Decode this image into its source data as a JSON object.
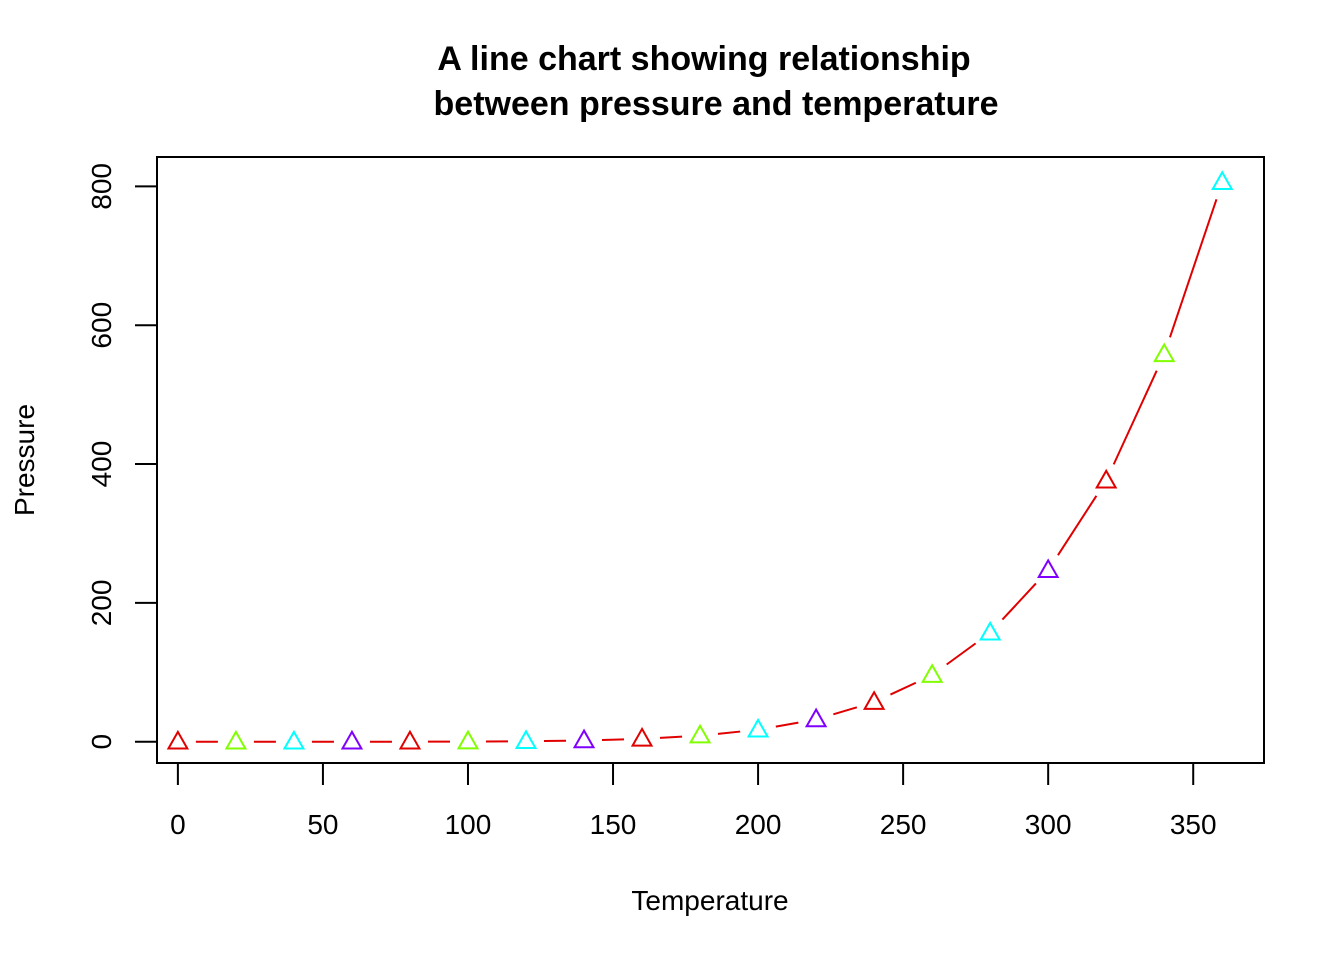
{
  "colors": {
    "line": "#e00000",
    "frame": "#000000",
    "marker_palette": [
      "#e00000",
      "#80ff00",
      "#00ffff",
      "#8000ff"
    ]
  },
  "chart_data": {
    "type": "line",
    "title_lines": [
      "A line chart showing relationship",
      "between pressure and temperature"
    ],
    "xlabel": "Temperature",
    "ylabel": "Pressure",
    "xlim": [
      -7.2,
      374.4
    ],
    "ylim": [
      -30.6,
      842.3
    ],
    "x_ticks": [
      0,
      50,
      100,
      150,
      200,
      250,
      300,
      350
    ],
    "y_ticks": [
      0,
      200,
      400,
      600,
      800
    ],
    "x_tick_labels": [
      "0",
      "50",
      "100",
      "150",
      "200",
      "250",
      "300",
      "350"
    ],
    "y_tick_labels": [
      "0",
      "200",
      "400",
      "600",
      "800"
    ],
    "grid": false,
    "legend": "none",
    "line_style": "overplotted (line with gaps at points)",
    "marker": "open-triangle",
    "x": [
      0,
      20,
      40,
      60,
      80,
      100,
      120,
      140,
      160,
      180,
      200,
      220,
      240,
      260,
      280,
      300,
      320,
      340,
      360
    ],
    "y": [
      0.0002,
      0.0012,
      0.006,
      0.03,
      0.09,
      0.27,
      0.75,
      1.85,
      4.2,
      8.8,
      17.3,
      32.1,
      57,
      96,
      157,
      247,
      376,
      558,
      806
    ]
  }
}
